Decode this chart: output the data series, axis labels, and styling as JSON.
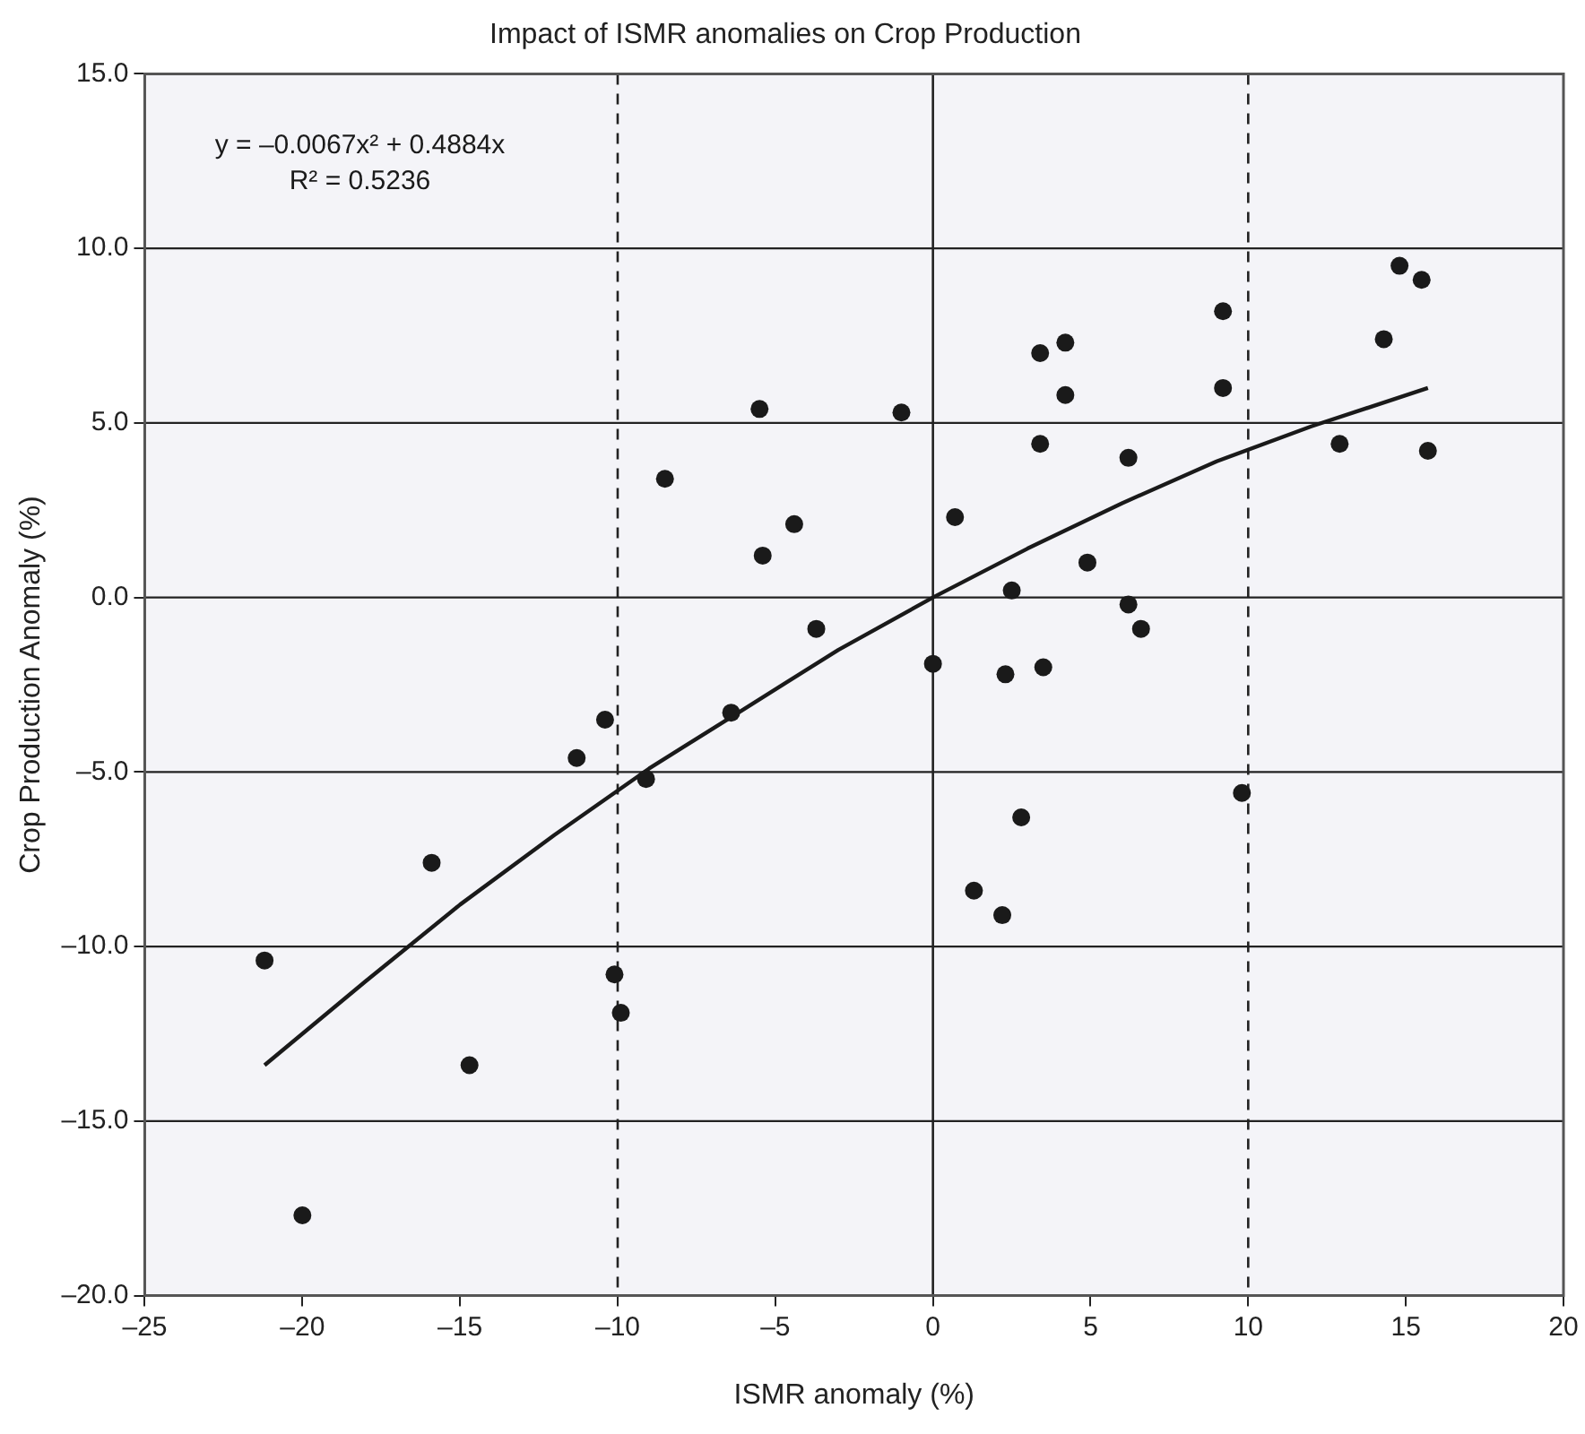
{
  "chart_data": {
    "type": "scatter",
    "title": "Impact of ISMR anomalies on Crop Production",
    "xlabel": "ISMR anomaly (%)",
    "ylabel": "Crop Production Anomaly (%)",
    "annotations": [
      "y = –0.0067x² + 0.4884x",
      "R² = 0.5236"
    ],
    "xlim": [
      -25,
      20
    ],
    "xticks": [
      {
        "value": -25,
        "label": "–25"
      },
      {
        "value": -20,
        "label": "–20"
      },
      {
        "value": -15,
        "label": "–15"
      },
      {
        "value": -10,
        "label": "–10"
      },
      {
        "value": -5,
        "label": "–5"
      },
      0,
      5,
      10,
      15,
      20
    ],
    "ylim": [
      -20,
      15
    ],
    "yticks": [
      {
        "value": -20,
        "label": "–20.0"
      },
      {
        "value": -15,
        "label": "–15.0"
      },
      {
        "value": -10,
        "label": "–10.0"
      },
      {
        "value": -5,
        "label": "–5.0"
      },
      {
        "value": 0,
        "label": "0.0"
      },
      {
        "value": 5,
        "label": "5.0"
      },
      {
        "value": 10,
        "label": "10.0"
      },
      {
        "value": 15,
        "label": "15.0"
      }
    ],
    "grid": "y",
    "legend": false,
    "marker": "circle",
    "ref_lines": [
      {
        "axis": "x",
        "value": -10,
        "line_style": "dashed",
        "color": "#222222"
      },
      {
        "axis": "x",
        "value": 10,
        "line_style": "dashed",
        "color": "#222222"
      },
      {
        "axis": "x",
        "value": 0,
        "line_style": "solid",
        "color": "#222222"
      }
    ],
    "series": [
      {
        "type": "scatter",
        "color": "#1a1a1a",
        "x": [
          -1.0,
          0.7,
          2.5,
          3.4,
          4.2,
          4.2,
          3.4,
          4.9,
          6.2,
          9.2,
          9.2,
          6.2,
          6.6,
          0.0,
          2.3,
          3.5,
          12.9,
          15.7,
          14.3,
          14.8,
          15.5,
          9.8,
          2.8,
          1.3,
          2.2,
          -5.5,
          -8.5,
          -4.4,
          -5.4,
          -3.7,
          -10.4,
          -11.3,
          -9.1,
          -6.4,
          -15.9,
          -21.2,
          -10.1,
          -9.9,
          -14.7,
          -20.0
        ],
        "values": [
          5.3,
          2.3,
          0.2,
          7.0,
          7.3,
          5.8,
          4.4,
          1.0,
          4.0,
          8.2,
          6.0,
          -0.2,
          -0.9,
          -1.9,
          -2.2,
          -2.0,
          4.4,
          4.2,
          7.4,
          9.5,
          9.1,
          -5.6,
          -6.3,
          -8.4,
          -9.1,
          5.4,
          3.4,
          2.1,
          1.2,
          -0.9,
          -3.5,
          -4.6,
          -5.2,
          -3.3,
          -7.6,
          -10.4,
          -10.8,
          -11.9,
          -13.4,
          -17.7
        ]
      },
      {
        "type": "line",
        "color": "#1a1a1a",
        "marker": "none",
        "x": [
          -21.2,
          -18,
          -15,
          -12,
          -9,
          -6,
          -3,
          0,
          3,
          6,
          9,
          12,
          15.7
        ],
        "values": [
          -13.4,
          -11.0,
          -8.8,
          -6.8,
          -4.9,
          -3.2,
          -1.5,
          0.0,
          1.4,
          2.7,
          3.9,
          4.9,
          6.0
        ]
      }
    ]
  }
}
